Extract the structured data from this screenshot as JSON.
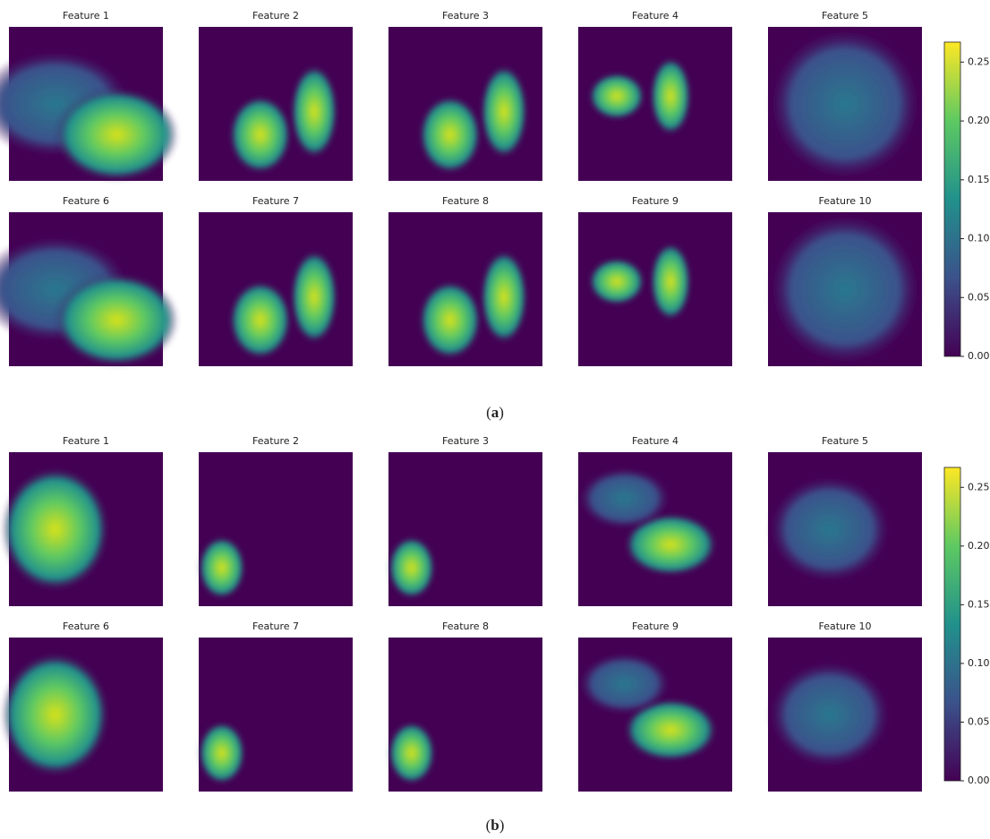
{
  "panels": [
    {
      "features": [
        "Feature 1",
        "Feature 2",
        "Feature 3",
        "Feature 4",
        "Feature 5",
        "Feature 6",
        "Feature 7",
        "Feature 8",
        "Feature 9",
        "Feature 10"
      ],
      "colorbar": {
        "lim": [
          0,
          0.267
        ],
        "ticks": [
          {
            "value": 0,
            "label": "0.00"
          },
          {
            "value": 0.05,
            "label": "0.05"
          },
          {
            "value": 0.1,
            "label": "0.10"
          },
          {
            "value": 0.15,
            "label": "0.15"
          },
          {
            "value": 0.2,
            "label": "0.20"
          },
          {
            "value": 0.25,
            "label": "0.25"
          }
        ]
      },
      "caption": {
        "open": "(",
        "letter": "a",
        "close": ")"
      }
    },
    {
      "features": [
        "Feature 1",
        "Feature 2",
        "Feature 3",
        "Feature 4",
        "Feature 5",
        "Feature 6",
        "Feature 7",
        "Feature 8",
        "Feature 9",
        "Feature 10"
      ],
      "colorbar": {
        "lim": [
          0,
          0.267
        ],
        "ticks": [
          {
            "value": 0,
            "label": "0.00"
          },
          {
            "value": 0.05,
            "label": "0.05"
          },
          {
            "value": 0.1,
            "label": "0.10"
          },
          {
            "value": 0.15,
            "label": "0.15"
          },
          {
            "value": 0.2,
            "label": "0.20"
          },
          {
            "value": 0.25,
            "label": "0.25"
          }
        ]
      },
      "caption": {
        "open": "(",
        "letter": "b",
        "close": ")"
      }
    }
  ]
}
